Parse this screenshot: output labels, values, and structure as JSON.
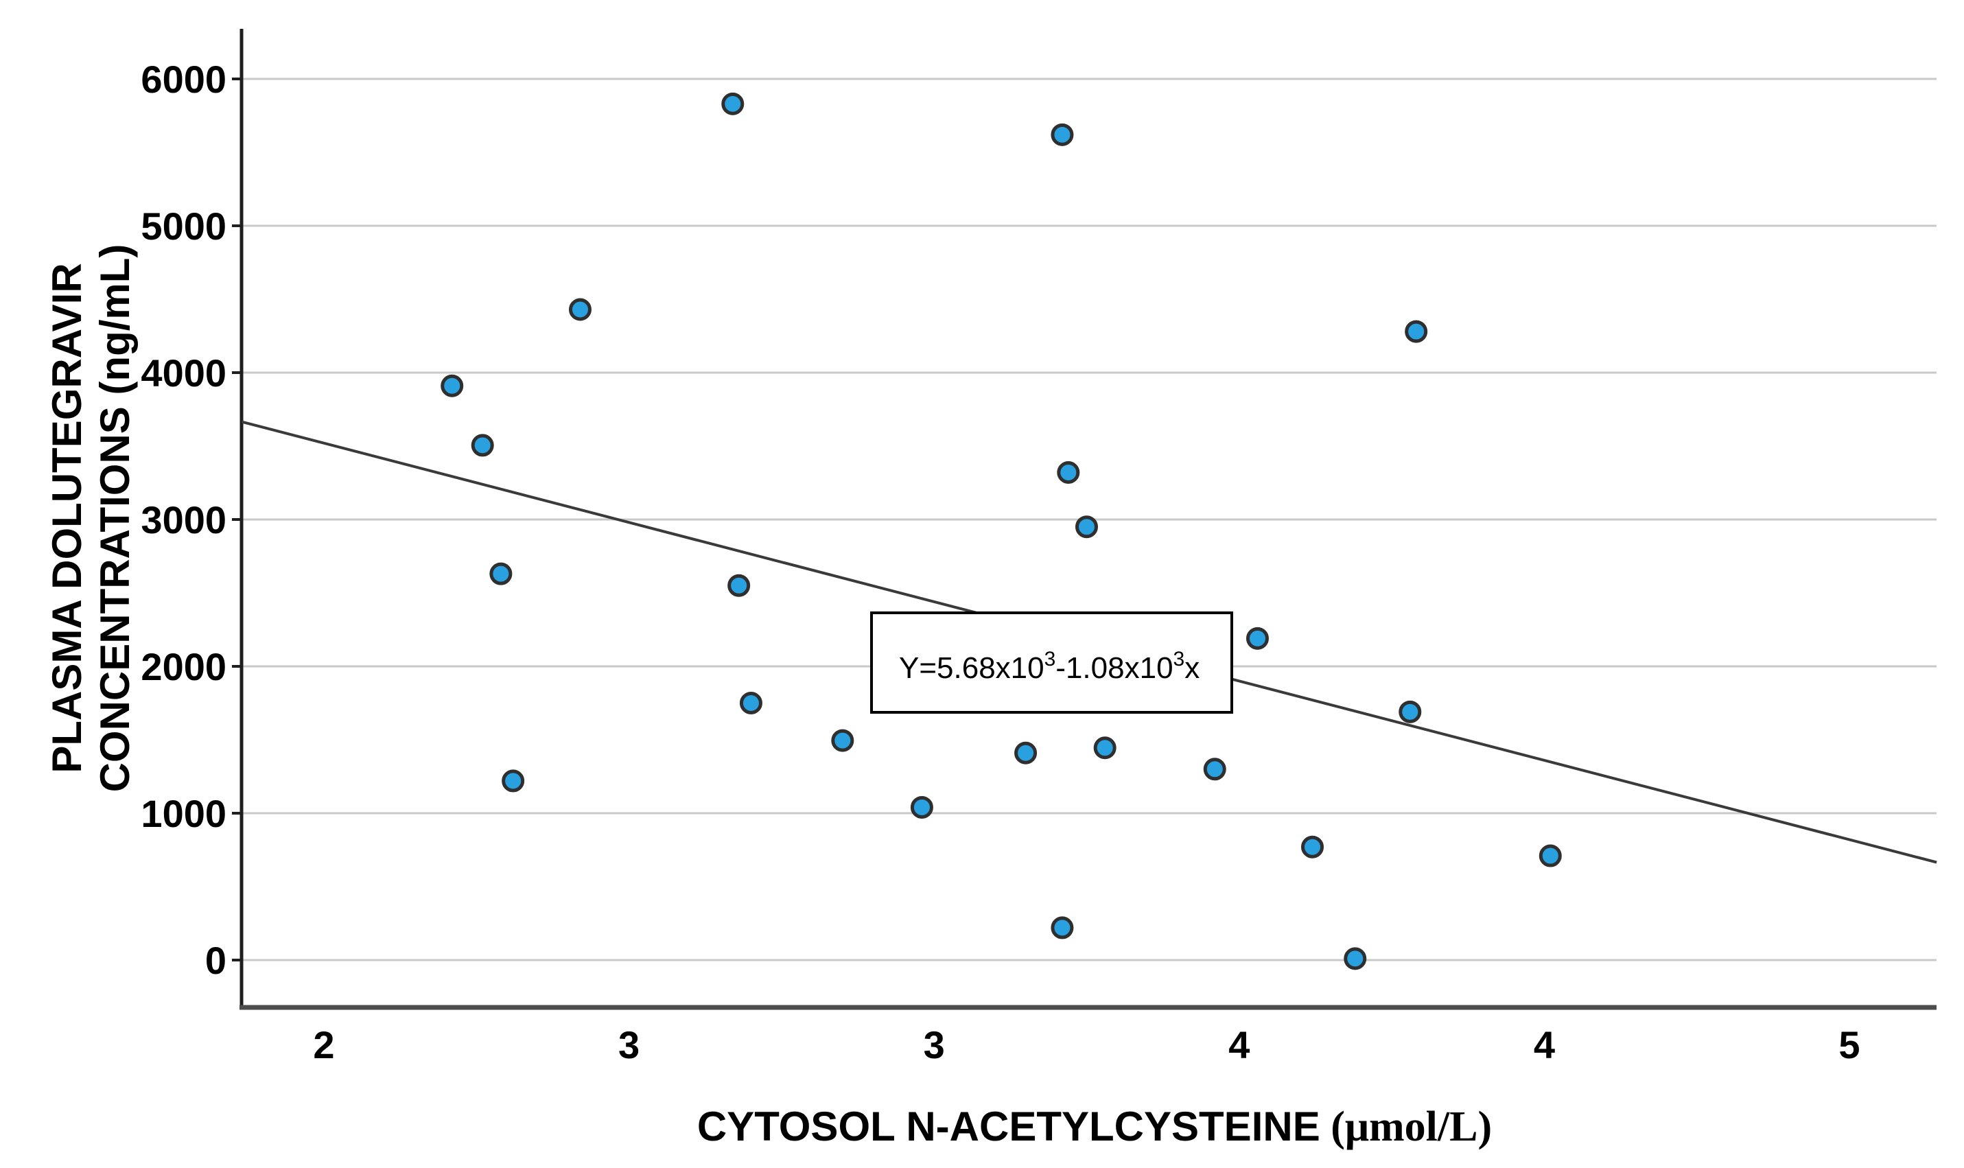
{
  "chart_data": {
    "type": "scatter",
    "title": "",
    "xlabel_main": "CYTOSOL N-ACETYLCYSTEINE",
    "xlabel_unit": " (μmol/L)",
    "ylabel_line1": "PLASMA DOLUTEGRAVIR",
    "ylabel_line2": "CONCENTRATIONS (ng/mL)",
    "x_ticks": [
      {
        "value": 2.0,
        "label": "2"
      },
      {
        "value": 2.5,
        "label": "3"
      },
      {
        "value": 3.0,
        "label": "3"
      },
      {
        "value": 3.5,
        "label": "4"
      },
      {
        "value": 4.0,
        "label": "4"
      },
      {
        "value": 4.5,
        "label": "5"
      }
    ],
    "y_ticks": [
      0,
      1000,
      2000,
      3000,
      4000,
      5000,
      6000
    ],
    "xlim": [
      1.865,
      4.643
    ],
    "ylim": [
      0,
      6000
    ],
    "grid": "horizontal-only",
    "legend": "none",
    "points": [
      {
        "x": 2.21,
        "y": 3910
      },
      {
        "x": 2.26,
        "y": 3505
      },
      {
        "x": 2.29,
        "y": 2630
      },
      {
        "x": 2.31,
        "y": 1220
      },
      {
        "x": 2.42,
        "y": 4430
      },
      {
        "x": 2.67,
        "y": 5830
      },
      {
        "x": 2.68,
        "y": 2550
      },
      {
        "x": 2.7,
        "y": 1750
      },
      {
        "x": 2.85,
        "y": 1495
      },
      {
        "x": 2.98,
        "y": 1040
      },
      {
        "x": 3.15,
        "y": 1410
      },
      {
        "x": 3.21,
        "y": 5620
      },
      {
        "x": 3.21,
        "y": 220
      },
      {
        "x": 3.22,
        "y": 3320
      },
      {
        "x": 3.25,
        "y": 2950
      },
      {
        "x": 3.28,
        "y": 1445
      },
      {
        "x": 3.46,
        "y": 1300
      },
      {
        "x": 3.53,
        "y": 2190
      },
      {
        "x": 3.62,
        "y": 770
      },
      {
        "x": 3.69,
        "y": 10
      },
      {
        "x": 3.78,
        "y": 1690
      },
      {
        "x": 3.79,
        "y": 4280
      },
      {
        "x": 4.01,
        "y": 710
      }
    ],
    "regression": {
      "equation_label": "Y=5.68x10³-1.08x10³x",
      "equation_parts": [
        {
          "t": "Y=5.68x10"
        },
        {
          "t": "3",
          "sup": true
        },
        {
          "t": "-1.08x10"
        },
        {
          "t": "3",
          "sup": true
        },
        {
          "t": "x"
        }
      ],
      "intercept": 5680,
      "slope": -1080
    },
    "colors": {
      "point_fill": "#29A0E0",
      "point_stroke": "#2F2F2F",
      "regression_line": "#3A3A3A",
      "grid_line": "#C9C9C9",
      "axis_left": "#1F1F1F",
      "axis_bottom": "#4D4D4D",
      "text": "#000000",
      "equation_box_bg": "#FFFFFF",
      "equation_box_border": "#000000"
    }
  }
}
